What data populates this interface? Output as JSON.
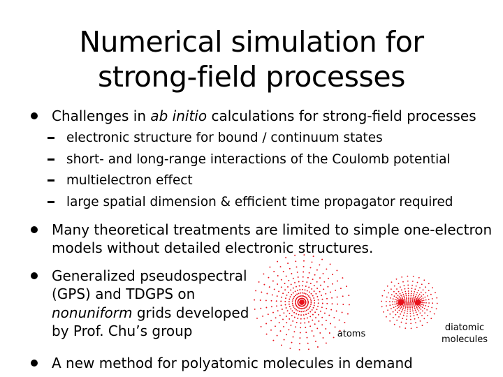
{
  "title": {
    "line1": "Numerical simulation for",
    "line2": "strong-field processes"
  },
  "bullet1": {
    "pre": "Challenges in ",
    "em": "ab initio",
    "post": " calculations for strong-field processes",
    "subs": [
      "electronic structure for bound / continuum states",
      "short- and long-range interactions of the Coulomb potential",
      "multielectron effect",
      "large spatial dimension & efficient time propagator required"
    ]
  },
  "bullet2": {
    "line1": "Many theoretical treatments are limited to simple one-electron",
    "line2": "models without detailed electronic structures."
  },
  "bullet3": {
    "line1": "Generalized pseudospectral",
    "line2": "(GPS) and TDGPS on",
    "line3_em": "nonuniform",
    "line3_post": " grids developed",
    "line4": "by Prof. Chu’s group"
  },
  "bullet4": {
    "text": "A new method for polyatomic molecules in demand"
  },
  "figure": {
    "atoms_label": "atoms",
    "diatomic_label_1": "diatomic",
    "diatomic_label_2": "molecules",
    "dot_color": "#e8101a"
  }
}
